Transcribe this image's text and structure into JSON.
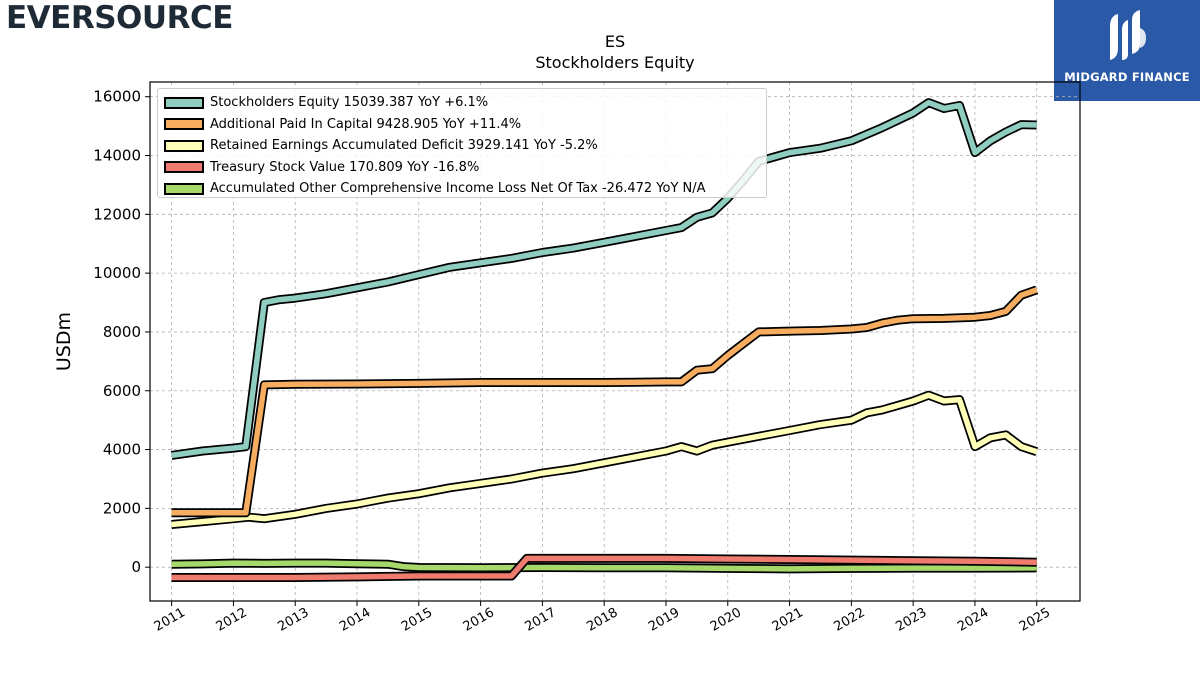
{
  "header": {
    "brand_left": "EVERSOURCE",
    "brand_right": "MIDGARD FINANCE"
  },
  "chart_data": {
    "type": "line",
    "title": "ES",
    "subtitle": "Stockholders  Equity",
    "xlabel": "",
    "ylabel": "USDm",
    "ylim": [
      -1150,
      16500
    ],
    "xlim": [
      2010.65,
      2025.7
    ],
    "yticks": [
      0,
      2000,
      4000,
      6000,
      8000,
      10000,
      12000,
      14000,
      16000
    ],
    "xticks": [
      "2011",
      "2012",
      "2013",
      "2014",
      "2015",
      "2016",
      "2017",
      "2018",
      "2019",
      "2020",
      "2021",
      "2022",
      "2023",
      "2024",
      "2025"
    ],
    "grid": true,
    "legend_position": "top-left",
    "series": [
      {
        "name": "Stockholders Equity",
        "legend": "Stockholders Equity  15039.387 YoY +6.1%",
        "color": "#8ecdc0",
        "points": [
          [
            2011.0,
            3800
          ],
          [
            2011.5,
            3950
          ],
          [
            2012.0,
            4050
          ],
          [
            2012.2,
            4100
          ],
          [
            2012.5,
            9000
          ],
          [
            2012.75,
            9100
          ],
          [
            2013.0,
            9150
          ],
          [
            2013.5,
            9300
          ],
          [
            2014.0,
            9500
          ],
          [
            2014.5,
            9700
          ],
          [
            2015.0,
            9950
          ],
          [
            2015.5,
            10200
          ],
          [
            2016.0,
            10350
          ],
          [
            2016.5,
            10500
          ],
          [
            2017.0,
            10700
          ],
          [
            2017.5,
            10850
          ],
          [
            2018.0,
            11050
          ],
          [
            2018.5,
            11250
          ],
          [
            2019.0,
            11450
          ],
          [
            2019.25,
            11550
          ],
          [
            2019.5,
            11900
          ],
          [
            2019.75,
            12050
          ],
          [
            2020.0,
            12550
          ],
          [
            2020.25,
            13150
          ],
          [
            2020.5,
            13800
          ],
          [
            2020.75,
            13950
          ],
          [
            2021.0,
            14100
          ],
          [
            2021.5,
            14250
          ],
          [
            2022.0,
            14500
          ],
          [
            2022.5,
            14950
          ],
          [
            2023.0,
            15450
          ],
          [
            2023.25,
            15800
          ],
          [
            2023.5,
            15600
          ],
          [
            2023.75,
            15700
          ],
          [
            2024.0,
            14100
          ],
          [
            2024.25,
            14500
          ],
          [
            2024.5,
            14800
          ],
          [
            2024.75,
            15050
          ],
          [
            2025.0,
            15039
          ]
        ]
      },
      {
        "name": "Additional Paid In Capital",
        "legend": "Additional Paid In Capital  9428.905 YoY +11.4%",
        "color": "#f7ad60",
        "points": [
          [
            2011.0,
            1850
          ],
          [
            2011.5,
            1850
          ],
          [
            2012.0,
            1850
          ],
          [
            2012.2,
            1850
          ],
          [
            2012.5,
            6200
          ],
          [
            2013.0,
            6220
          ],
          [
            2014.0,
            6230
          ],
          [
            2015.0,
            6250
          ],
          [
            2016.0,
            6280
          ],
          [
            2017.0,
            6280
          ],
          [
            2018.0,
            6280
          ],
          [
            2019.0,
            6300
          ],
          [
            2019.25,
            6300
          ],
          [
            2019.5,
            6700
          ],
          [
            2019.75,
            6750
          ],
          [
            2020.0,
            7200
          ],
          [
            2020.25,
            7600
          ],
          [
            2020.5,
            8000
          ],
          [
            2021.0,
            8030
          ],
          [
            2021.5,
            8050
          ],
          [
            2022.0,
            8100
          ],
          [
            2022.25,
            8150
          ],
          [
            2022.5,
            8300
          ],
          [
            2022.75,
            8400
          ],
          [
            2023.0,
            8450
          ],
          [
            2023.5,
            8460
          ],
          [
            2024.0,
            8500
          ],
          [
            2024.25,
            8560
          ],
          [
            2024.5,
            8700
          ],
          [
            2024.75,
            9250
          ],
          [
            2025.0,
            9429
          ]
        ]
      },
      {
        "name": "Retained Earnings Accumulated Deficit",
        "legend": "Retained Earnings Accumulated Deficit  3929.141 YoY -5.2%",
        "color": "#ffffb8",
        "points": [
          [
            2011.0,
            1450
          ],
          [
            2011.5,
            1550
          ],
          [
            2012.0,
            1650
          ],
          [
            2012.25,
            1700
          ],
          [
            2012.5,
            1650
          ],
          [
            2013.0,
            1800
          ],
          [
            2013.5,
            2000
          ],
          [
            2014.0,
            2150
          ],
          [
            2014.5,
            2350
          ],
          [
            2015.0,
            2500
          ],
          [
            2015.5,
            2700
          ],
          [
            2016.0,
            2850
          ],
          [
            2016.5,
            3000
          ],
          [
            2017.0,
            3200
          ],
          [
            2017.5,
            3350
          ],
          [
            2018.0,
            3550
          ],
          [
            2018.5,
            3750
          ],
          [
            2019.0,
            3950
          ],
          [
            2019.25,
            4100
          ],
          [
            2019.5,
            3950
          ],
          [
            2019.75,
            4150
          ],
          [
            2020.0,
            4250
          ],
          [
            2020.5,
            4450
          ],
          [
            2021.0,
            4650
          ],
          [
            2021.5,
            4850
          ],
          [
            2022.0,
            5000
          ],
          [
            2022.25,
            5250
          ],
          [
            2022.5,
            5350
          ],
          [
            2022.75,
            5500
          ],
          [
            2023.0,
            5650
          ],
          [
            2023.25,
            5850
          ],
          [
            2023.5,
            5650
          ],
          [
            2023.75,
            5700
          ],
          [
            2024.0,
            4100
          ],
          [
            2024.25,
            4400
          ],
          [
            2024.5,
            4500
          ],
          [
            2024.75,
            4100
          ],
          [
            2025.0,
            3929
          ]
        ]
      },
      {
        "name": "Treasury Stock Value",
        "legend": "Treasury Stock Value  170.809 YoY -16.8%",
        "color": "#ee7b6e",
        "points": [
          [
            2011.0,
            -350
          ],
          [
            2012.0,
            -350
          ],
          [
            2013.0,
            -350
          ],
          [
            2014.0,
            -330
          ],
          [
            2015.0,
            -300
          ],
          [
            2016.0,
            -300
          ],
          [
            2016.5,
            -300
          ],
          [
            2016.75,
            300
          ],
          [
            2017.0,
            300
          ],
          [
            2018.0,
            300
          ],
          [
            2019.0,
            300
          ],
          [
            2020.0,
            280
          ],
          [
            2021.0,
            260
          ],
          [
            2022.0,
            240
          ],
          [
            2023.0,
            220
          ],
          [
            2024.0,
            200
          ],
          [
            2025.0,
            171
          ]
        ]
      },
      {
        "name": "Accumulated Other Comprehensive Income Loss Net Of Tax",
        "legend": "Accumulated Other Comprehensive Income Loss Net Of Tax  -26.472 YoY N/A",
        "color": "#a6d96a",
        "points": [
          [
            2011.0,
            100
          ],
          [
            2011.5,
            110
          ],
          [
            2012.0,
            140
          ],
          [
            2012.5,
            130
          ],
          [
            2013.0,
            140
          ],
          [
            2013.5,
            140
          ],
          [
            2014.0,
            120
          ],
          [
            2014.5,
            100
          ],
          [
            2014.75,
            20
          ],
          [
            2015.0,
            -10
          ],
          [
            2016.0,
            -20
          ],
          [
            2017.0,
            -10
          ],
          [
            2018.0,
            -20
          ],
          [
            2019.0,
            -20
          ],
          [
            2020.0,
            -40
          ],
          [
            2021.0,
            -60
          ],
          [
            2022.0,
            -40
          ],
          [
            2023.0,
            -30
          ],
          [
            2024.0,
            -30
          ],
          [
            2025.0,
            -26
          ]
        ]
      }
    ]
  }
}
